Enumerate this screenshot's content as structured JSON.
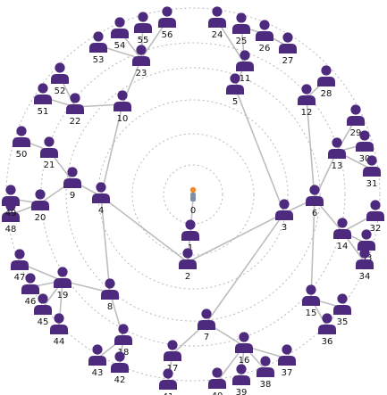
{
  "network": {
    "center": {
      "id": "0",
      "label": "0"
    },
    "nodes": [
      {
        "id": "1",
        "label": "1"
      },
      {
        "id": "2",
        "label": "2"
      },
      {
        "id": "3",
        "label": "3"
      },
      {
        "id": "4",
        "label": "4"
      },
      {
        "id": "5",
        "label": "5"
      },
      {
        "id": "6",
        "label": "6"
      },
      {
        "id": "7",
        "label": "7"
      },
      {
        "id": "8",
        "label": "8"
      },
      {
        "id": "9",
        "label": "9"
      },
      {
        "id": "10",
        "label": "10"
      },
      {
        "id": "11",
        "label": "11"
      },
      {
        "id": "12",
        "label": "12"
      },
      {
        "id": "13",
        "label": "13"
      },
      {
        "id": "14",
        "label": "14"
      },
      {
        "id": "15",
        "label": "15"
      },
      {
        "id": "16",
        "label": "16"
      },
      {
        "id": "17",
        "label": "17"
      },
      {
        "id": "18",
        "label": "18"
      },
      {
        "id": "19",
        "label": "19"
      },
      {
        "id": "20",
        "label": "20"
      },
      {
        "id": "21",
        "label": "21"
      },
      {
        "id": "22",
        "label": "22"
      },
      {
        "id": "23",
        "label": "23"
      },
      {
        "id": "24",
        "label": "24"
      },
      {
        "id": "25",
        "label": "25"
      },
      {
        "id": "26",
        "label": "26"
      },
      {
        "id": "27",
        "label": "27"
      },
      {
        "id": "28",
        "label": "28"
      },
      {
        "id": "29",
        "label": "29"
      },
      {
        "id": "30",
        "label": "30"
      },
      {
        "id": "31",
        "label": "31"
      },
      {
        "id": "32",
        "label": "32"
      },
      {
        "id": "33",
        "label": "33"
      },
      {
        "id": "34",
        "label": "34"
      },
      {
        "id": "35",
        "label": "35"
      },
      {
        "id": "36",
        "label": "36"
      },
      {
        "id": "37",
        "label": "37"
      },
      {
        "id": "38",
        "label": "38"
      },
      {
        "id": "39",
        "label": "39"
      },
      {
        "id": "40",
        "label": "40"
      },
      {
        "id": "41",
        "label": "41"
      },
      {
        "id": "42",
        "label": "42"
      },
      {
        "id": "43",
        "label": "43"
      },
      {
        "id": "44",
        "label": "44"
      },
      {
        "id": "45",
        "label": "45"
      },
      {
        "id": "46",
        "label": "46"
      },
      {
        "id": "47",
        "label": "47"
      },
      {
        "id": "48",
        "label": "48"
      },
      {
        "id": "49",
        "label": "49"
      },
      {
        "id": "50",
        "label": "50"
      },
      {
        "id": "51",
        "label": "51"
      },
      {
        "id": "52",
        "label": "52"
      },
      {
        "id": "53",
        "label": "53"
      },
      {
        "id": "54",
        "label": "54"
      },
      {
        "id": "55",
        "label": "55"
      },
      {
        "id": "56",
        "label": "56"
      }
    ],
    "edges": [
      [
        "0",
        "1"
      ],
      [
        "1",
        "2"
      ],
      [
        "2",
        "4"
      ],
      [
        "2",
        "3"
      ],
      [
        "4",
        "9"
      ],
      [
        "4",
        "10"
      ],
      [
        "4",
        "8"
      ],
      [
        "3",
        "7"
      ],
      [
        "3",
        "6"
      ],
      [
        "3",
        "5"
      ],
      [
        "5",
        "11"
      ],
      [
        "10",
        "23"
      ],
      [
        "11",
        "24"
      ],
      [
        "11",
        "25"
      ],
      [
        "23",
        "53"
      ],
      [
        "23",
        "54"
      ],
      [
        "23",
        "55"
      ],
      [
        "23",
        "56"
      ],
      [
        "25",
        "26"
      ],
      [
        "26",
        "27"
      ],
      [
        "6",
        "12"
      ],
      [
        "6",
        "13"
      ],
      [
        "6",
        "14"
      ],
      [
        "6",
        "15"
      ],
      [
        "12",
        "28"
      ],
      [
        "13",
        "29"
      ],
      [
        "13",
        "30"
      ],
      [
        "13",
        "31"
      ],
      [
        "14",
        "32"
      ],
      [
        "14",
        "33"
      ],
      [
        "14",
        "34"
      ],
      [
        "15",
        "35"
      ],
      [
        "15",
        "36"
      ],
      [
        "7",
        "16"
      ],
      [
        "7",
        "17"
      ],
      [
        "16",
        "37"
      ],
      [
        "16",
        "38"
      ],
      [
        "16",
        "39"
      ],
      [
        "16",
        "40"
      ],
      [
        "17",
        "41"
      ],
      [
        "8",
        "18"
      ],
      [
        "8",
        "19"
      ],
      [
        "18",
        "42"
      ],
      [
        "18",
        "43"
      ],
      [
        "19",
        "44"
      ],
      [
        "19",
        "45"
      ],
      [
        "19",
        "46"
      ],
      [
        "19",
        "47"
      ],
      [
        "9",
        "20"
      ],
      [
        "9",
        "21"
      ],
      [
        "20",
        "48"
      ],
      [
        "20",
        "49"
      ],
      [
        "21",
        "50"
      ],
      [
        "10",
        "22"
      ],
      [
        "22",
        "51"
      ],
      [
        "22",
        "52"
      ]
    ],
    "colors": {
      "node": "#4e2a7e",
      "edge": "#bdbdbd",
      "ring": "#b9b9b9",
      "center_body": "#7f8fa6",
      "center_head": "#f08a24"
    }
  }
}
